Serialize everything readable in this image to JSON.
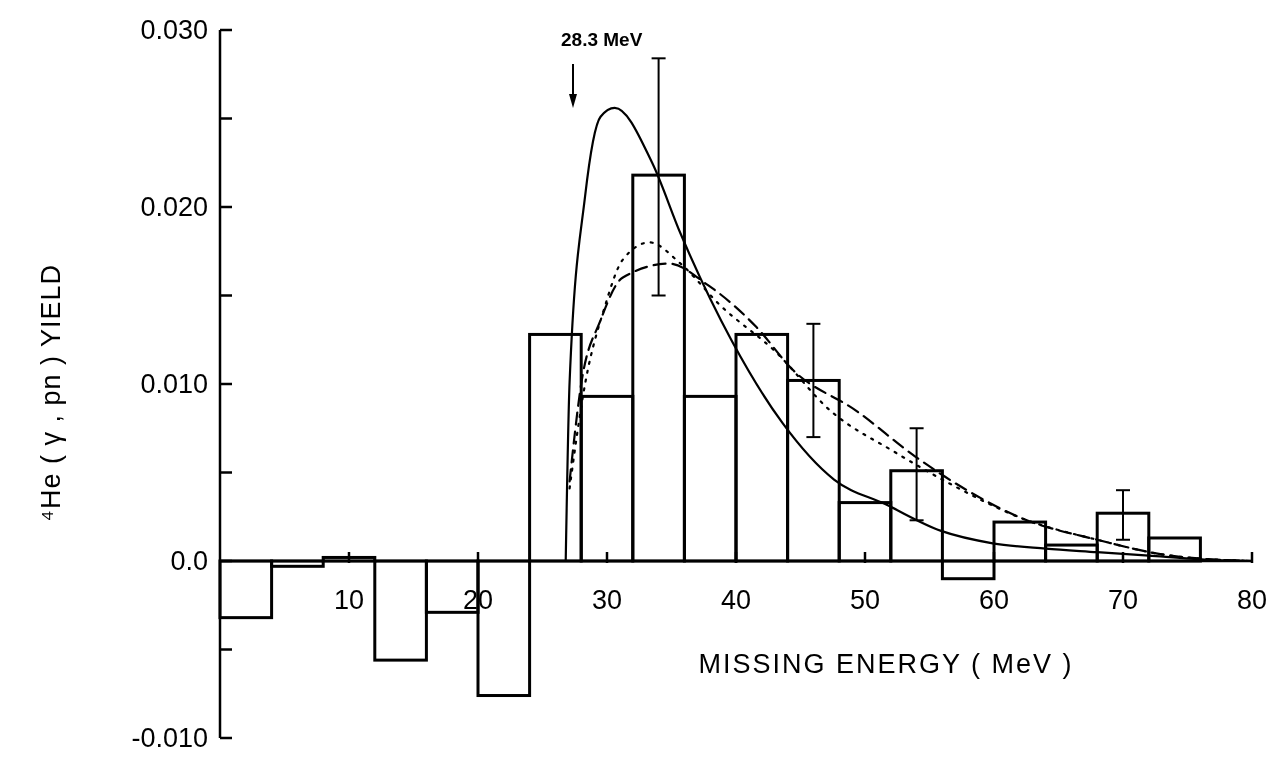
{
  "chart_data": {
    "type": "histogram",
    "xlabel": "MISSING ENERGY ( MeV )",
    "ylabel": "⁴He ( γ , pn )  YIELD",
    "bins": [
      0,
      4,
      8,
      12,
      16,
      20,
      24,
      28,
      32,
      36,
      40,
      44,
      48,
      52,
      56,
      60,
      64,
      68,
      72,
      76,
      80
    ],
    "values": [
      -0.0032,
      -0.0003,
      0.0002,
      -0.0056,
      -0.0029,
      -0.0076,
      0.0128,
      0.0093,
      0.0218,
      0.0093,
      0.0128,
      0.0102,
      0.0033,
      0.0051,
      -0.001,
      0.0022,
      0.0009,
      0.0027,
      0.0013,
      0.0
    ],
    "errors": [
      null,
      null,
      null,
      null,
      null,
      null,
      null,
      null,
      [
        0.015,
        0.0284
      ],
      null,
      null,
      [
        0.007,
        0.0134
      ],
      null,
      [
        0.0023,
        0.0075
      ],
      null,
      null,
      null,
      [
        0.0012,
        0.004
      ],
      null,
      null
    ],
    "color": "#000000",
    "series": [
      {
        "type": "line",
        "color": "#000000",
        "line_style": "solid",
        "x": [
          26.8,
          27.1,
          28.3,
          29.5,
          30.6,
          33.5,
          35.7,
          39.7,
          43.6,
          47.6,
          51.6,
          55.9,
          59.9,
          64,
          68,
          72,
          76,
          80
        ],
        "values": [
          0.0,
          0.0101,
          0.0206,
          0.0251,
          0.0256,
          0.0225,
          0.0185,
          0.0124,
          0.0078,
          0.0046,
          0.0032,
          0.0017,
          0.001,
          0.0007,
          0.0005,
          0.0003,
          0.0001,
          0.0
        ]
      },
      {
        "type": "line",
        "color": "#000000",
        "line_style": "dotted",
        "x": [
          27.1,
          28.3,
          29.8,
          31.2,
          33.3,
          35.7,
          38.7,
          43.1,
          47.3,
          52.2,
          56.5,
          62.2,
          68,
          73.7,
          80
        ],
        "values": [
          0.0041,
          0.01,
          0.0143,
          0.017,
          0.018,
          0.0168,
          0.0145,
          0.0118,
          0.0085,
          0.0062,
          0.0044,
          0.0024,
          0.0012,
          0.0003,
          0.0
        ]
      },
      {
        "type": "line",
        "color": "#000000",
        "line_style": "dashed",
        "x": [
          27.1,
          28,
          29.5,
          31.2,
          34.8,
          37.8,
          41.6,
          44.4,
          49.3,
          53.9,
          57.9,
          62.2,
          68,
          73.7,
          80
        ],
        "values": [
          0.0045,
          0.01,
          0.0136,
          0.016,
          0.0168,
          0.0156,
          0.0132,
          0.0108,
          0.0085,
          0.0059,
          0.004,
          0.0024,
          0.0012,
          0.0003,
          0.0
        ]
      }
    ],
    "annotations": [
      "28.3 MeV"
    ],
    "xlim": [
      0,
      80
    ],
    "ylim": [
      -0.01,
      0.03
    ],
    "xticks": [
      10,
      20,
      30,
      40,
      50,
      60,
      70,
      80
    ],
    "yticks": [
      {
        "value": -0.01,
        "label": "-0.010"
      },
      {
        "value": -0.005,
        "label": null
      },
      {
        "value": 0,
        "label": "0.0"
      },
      {
        "value": 0.005,
        "label": null
      },
      {
        "value": 0.01,
        "label": "0.010"
      },
      {
        "value": 0.015,
        "label": null
      },
      {
        "value": 0.02,
        "label": "0.020"
      },
      {
        "value": 0.025,
        "label": null
      },
      {
        "value": 0.03,
        "label": "0.030"
      }
    ],
    "grid": false
  }
}
